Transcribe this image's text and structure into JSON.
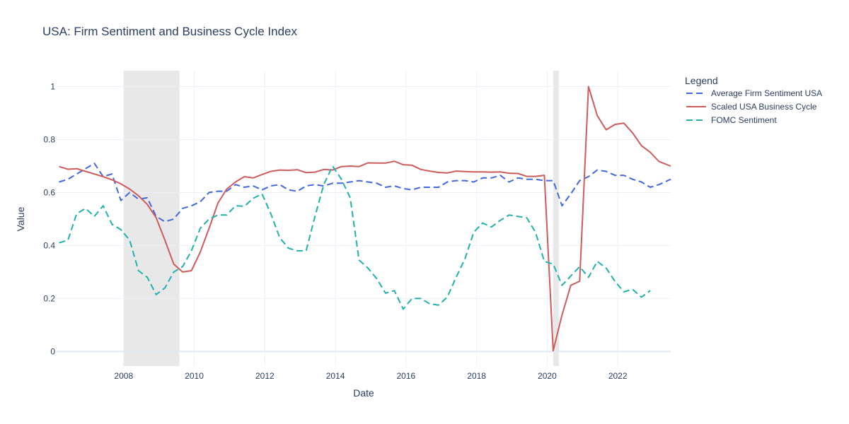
{
  "chart_data": {
    "type": "line",
    "title": "USA: Firm Sentiment and Business Cycle Index",
    "xlabel": "Date",
    "ylabel": "Value",
    "xlim": [
      2006.1,
      2023.5
    ],
    "ylim": [
      -0.055,
      1.06
    ],
    "x_ticks": [
      2008,
      2010,
      2012,
      2014,
      2016,
      2018,
      2020,
      2022
    ],
    "y_ticks": [
      0,
      0.2,
      0.4,
      0.6,
      0.8,
      1
    ],
    "grid": true,
    "legend": {
      "title": "Legend",
      "position": "right"
    },
    "recession_bands": [
      [
        2008.0,
        2009.58
      ],
      [
        2020.17,
        2020.33
      ]
    ],
    "colors": {
      "band": "#e8e8e8",
      "grid": "#ebf0f8",
      "zero": "#e2e8f0"
    },
    "series": [
      {
        "name": "Average Firm Sentiment USA",
        "color": "#4169e1",
        "dash": "dash",
        "x": [
          2006.17,
          2006.42,
          2006.67,
          2006.92,
          2007.17,
          2007.42,
          2007.67,
          2007.92,
          2008.17,
          2008.42,
          2008.67,
          2008.92,
          2009.17,
          2009.42,
          2009.67,
          2009.92,
          2010.17,
          2010.42,
          2010.67,
          2010.92,
          2011.17,
          2011.42,
          2011.67,
          2011.92,
          2012.17,
          2012.42,
          2012.67,
          2012.92,
          2013.17,
          2013.42,
          2013.67,
          2013.92,
          2014.17,
          2014.42,
          2014.67,
          2014.92,
          2015.17,
          2015.42,
          2015.67,
          2015.92,
          2016.17,
          2016.42,
          2016.67,
          2016.92,
          2017.17,
          2017.42,
          2017.67,
          2017.92,
          2018.17,
          2018.42,
          2018.67,
          2018.92,
          2019.17,
          2019.42,
          2019.67,
          2019.92,
          2020.17,
          2020.42,
          2020.67,
          2020.92,
          2021.17,
          2021.42,
          2021.67,
          2021.92,
          2022.17,
          2022.42,
          2022.67,
          2022.92,
          2023.17,
          2023.5
        ],
        "y": [
          0.64,
          0.65,
          0.67,
          0.69,
          0.71,
          0.66,
          0.67,
          0.57,
          0.6,
          0.575,
          0.58,
          0.51,
          0.49,
          0.5,
          0.54,
          0.55,
          0.565,
          0.6,
          0.605,
          0.605,
          0.63,
          0.62,
          0.625,
          0.61,
          0.625,
          0.63,
          0.61,
          0.605,
          0.625,
          0.63,
          0.625,
          0.635,
          0.635,
          0.64,
          0.645,
          0.64,
          0.635,
          0.62,
          0.625,
          0.615,
          0.61,
          0.62,
          0.62,
          0.62,
          0.64,
          0.645,
          0.645,
          0.64,
          0.655,
          0.655,
          0.665,
          0.64,
          0.655,
          0.65,
          0.65,
          0.645,
          0.645,
          0.55,
          0.595,
          0.645,
          0.66,
          0.685,
          0.68,
          0.665,
          0.665,
          0.65,
          0.64,
          0.62,
          0.63,
          0.65
        ]
      },
      {
        "name": "Scaled USA Business Cycle",
        "color": "#cd5c5c",
        "dash": "solid",
        "x": [
          2006.17,
          2006.42,
          2006.67,
          2006.92,
          2007.17,
          2007.42,
          2007.67,
          2007.92,
          2008.17,
          2008.42,
          2008.67,
          2008.92,
          2009.17,
          2009.42,
          2009.67,
          2009.92,
          2010.17,
          2010.42,
          2010.67,
          2010.92,
          2011.17,
          2011.42,
          2011.67,
          2011.92,
          2012.17,
          2012.42,
          2012.67,
          2012.92,
          2013.17,
          2013.42,
          2013.67,
          2013.92,
          2014.17,
          2014.42,
          2014.67,
          2014.92,
          2015.17,
          2015.42,
          2015.67,
          2015.92,
          2016.17,
          2016.42,
          2016.67,
          2016.92,
          2017.17,
          2017.42,
          2017.67,
          2017.92,
          2018.17,
          2018.42,
          2018.67,
          2018.92,
          2019.17,
          2019.42,
          2019.67,
          2019.92,
          2020.17,
          2020.42,
          2020.67,
          2020.92,
          2021.17,
          2021.42,
          2021.67,
          2021.92,
          2022.17,
          2022.42,
          2022.67,
          2022.92,
          2023.17,
          2023.5
        ],
        "y": [
          0.698,
          0.688,
          0.69,
          0.68,
          0.67,
          0.66,
          0.648,
          0.633,
          0.613,
          0.588,
          0.555,
          0.505,
          0.42,
          0.33,
          0.3,
          0.305,
          0.375,
          0.465,
          0.56,
          0.613,
          0.64,
          0.66,
          0.655,
          0.668,
          0.68,
          0.685,
          0.684,
          0.686,
          0.675,
          0.677,
          0.687,
          0.685,
          0.698,
          0.7,
          0.698,
          0.712,
          0.711,
          0.711,
          0.718,
          0.705,
          0.703,
          0.687,
          0.681,
          0.676,
          0.674,
          0.681,
          0.679,
          0.678,
          0.678,
          0.677,
          0.678,
          0.673,
          0.672,
          0.661,
          0.661,
          0.665,
          0.003,
          0.138,
          0.25,
          0.265,
          1.0,
          0.89,
          0.837,
          0.857,
          0.862,
          0.825,
          0.777,
          0.752,
          0.717,
          0.7
        ]
      },
      {
        "name": "FOMC Sentiment",
        "color": "#20b2aa",
        "dash": "dash",
        "x": [
          2006.17,
          2006.42,
          2006.67,
          2006.92,
          2007.17,
          2007.42,
          2007.67,
          2007.92,
          2008.17,
          2008.42,
          2008.67,
          2008.92,
          2009.17,
          2009.42,
          2009.67,
          2009.92,
          2010.17,
          2010.42,
          2010.67,
          2010.92,
          2011.17,
          2011.42,
          2011.67,
          2011.92,
          2012.17,
          2012.42,
          2012.67,
          2012.92,
          2013.17,
          2013.42,
          2013.67,
          2013.92,
          2014.17,
          2014.42,
          2014.67,
          2014.92,
          2015.17,
          2015.42,
          2015.67,
          2015.92,
          2016.17,
          2016.42,
          2016.67,
          2016.92,
          2017.17,
          2017.42,
          2017.67,
          2017.92,
          2018.17,
          2018.42,
          2018.67,
          2018.92,
          2019.17,
          2019.42,
          2019.67,
          2019.92,
          2020.17,
          2020.42,
          2020.67,
          2020.92,
          2021.17,
          2021.42,
          2021.67,
          2021.92,
          2022.17,
          2022.42,
          2022.67,
          2022.92
        ],
        "y": [
          0.41,
          0.42,
          0.52,
          0.54,
          0.51,
          0.55,
          0.48,
          0.46,
          0.42,
          0.305,
          0.28,
          0.215,
          0.24,
          0.3,
          0.32,
          0.38,
          0.465,
          0.5,
          0.515,
          0.515,
          0.55,
          0.548,
          0.578,
          0.595,
          0.52,
          0.43,
          0.39,
          0.38,
          0.38,
          0.51,
          0.63,
          0.7,
          0.65,
          0.58,
          0.345,
          0.315,
          0.275,
          0.22,
          0.23,
          0.16,
          0.2,
          0.2,
          0.18,
          0.175,
          0.205,
          0.28,
          0.35,
          0.45,
          0.485,
          0.47,
          0.495,
          0.515,
          0.51,
          0.505,
          0.45,
          0.34,
          0.33,
          0.25,
          0.285,
          0.32,
          0.28,
          0.34,
          0.315,
          0.265,
          0.225,
          0.235,
          0.205,
          0.23
        ]
      }
    ]
  }
}
